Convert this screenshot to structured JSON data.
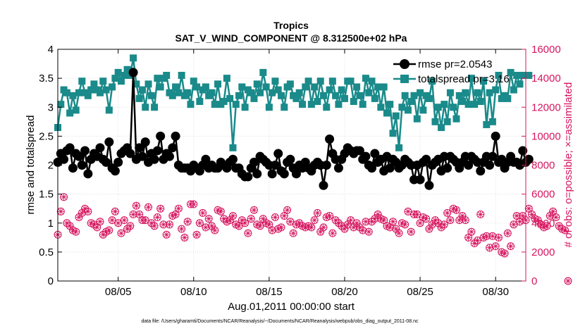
{
  "chart_data": {
    "type": "line",
    "title": "Tropics",
    "subtitle": "SAT_V_WIND_COMPONENT @ 8.312500e+02 hPa",
    "xlabel": "Aug.01,2011 00:00:00 start",
    "ylabel": "rmse and totalspread",
    "y2label": "# of obs: o=possible; ×=assimilated",
    "footnote": "data file: /Users/gharamti/Documents/NCAR/Reanalysis/~/Documents/NCAR/Reanalysis/webpub/obs_diag_output_2011-08.nc",
    "xlim": [
      1,
      32
    ],
    "ylim": [
      0,
      4
    ],
    "y2lim": [
      0,
      16000
    ],
    "x_ticks": [
      5,
      10,
      15,
      20,
      25,
      30
    ],
    "x_tick_labels": [
      "08/05",
      "08/10",
      "08/15",
      "08/20",
      "08/25",
      "08/30"
    ],
    "y_ticks": [
      "0",
      "0.5",
      "1",
      "1.5",
      "2",
      "2.5",
      "3",
      "3.5",
      "4"
    ],
    "y2_ticks": [
      "0",
      "2000",
      "4000",
      "6000",
      "8000",
      "10000",
      "12000",
      "14000",
      "16000"
    ],
    "legend": [
      "rmse pr=2.0543",
      "totalspread pr=3.16"
    ],
    "legend_location": "top-right",
    "colors": {
      "rmse": "#000000",
      "spread": "#1a8a8a",
      "obs": "#d6155f"
    },
    "series": [
      {
        "name": "rmse pr=2.0543",
        "axis": "left",
        "marker": "filled-circle",
        "values": [
          2.05,
          2.2,
          2.1,
          2.25,
          2.3,
          1.95,
          2.2,
          2.15,
          2.0,
          2.25,
          1.85,
          2.1,
          2.2,
          2.15,
          2.3,
          2.1,
          2.05,
          2.4,
          1.95,
          1.9,
          2.05,
          2.2,
          2.25,
          2.3,
          2.2,
          3.6,
          2.1,
          2.3,
          2.15,
          2.4,
          2.05,
          2.2,
          2.1,
          2.25,
          2.5,
          2.1,
          2.2,
          2.15,
          2.3,
          2.5,
          2.0,
          1.95,
          1.95,
          1.95,
          1.9,
          2.0,
          1.95,
          1.9,
          2.0,
          2.1,
          1.95,
          2.0,
          1.95,
          1.95,
          2.05,
          2.0,
          1.95,
          2.05,
          2.1,
          1.95,
          1.95,
          1.85,
          1.8,
          1.8,
          1.95,
          2.05,
          1.85,
          2.15,
          2.1,
          2.05,
          2.0,
          1.85,
          2.0,
          2.2,
          1.9,
          1.85,
          2.05,
          2.1,
          1.95,
          1.85,
          2.0,
          1.95,
          2.05,
          1.95,
          1.9,
          2.0,
          2.05,
          2.0,
          1.65,
          2.0,
          2.45,
          2.2,
          2.1,
          1.95,
          2.1,
          2.2,
          2.3,
          2.25,
          2.2,
          2.25,
          2.25,
          2.1,
          2.15,
          2.0,
          1.95,
          2.2,
          2.05,
          2.1,
          1.9,
          2.15,
          1.95,
          2.1,
          2.05,
          1.95,
          2.0,
          2.1,
          2.05,
          2.0,
          1.75,
          2.0,
          1.75,
          2.05,
          2.1,
          1.65,
          2.0,
          2.05,
          2.1,
          1.9,
          2.15,
          1.95,
          2.15,
          2.1,
          2.05,
          1.95,
          2.05,
          2.15,
          2.0,
          2.15,
          2.1,
          2.05,
          1.9,
          2.05,
          2.15,
          2.0,
          2.15,
          2.5,
          2.05,
          2.1,
          1.95,
          2.05,
          2.15,
          2.05,
          2.05,
          2.0,
          2.25,
          2.05,
          2.1
        ]
      },
      {
        "name": "totalspread pr=3.16",
        "axis": "left",
        "marker": "filled-square",
        "values": [
          2.65,
          3.05,
          3.3,
          3.25,
          2.9,
          3.2,
          2.95,
          3.25,
          3.45,
          3.25,
          3.2,
          3.3,
          3.4,
          3.3,
          3.25,
          3.45,
          3.3,
          2.95,
          3.35,
          3.5,
          3.6,
          3.45,
          3.55,
          3.65,
          3.55,
          3.85,
          3.4,
          3.15,
          3.3,
          3.0,
          3.4,
          3.2,
          3.0,
          3.5,
          3.35,
          3.5,
          3.55,
          3.25,
          3.2,
          3.35,
          3.25,
          3.55,
          3.2,
          3.25,
          3.05,
          3.45,
          3.35,
          3.1,
          3.3,
          3.35,
          3.2,
          3.25,
          3.05,
          3.4,
          3.05,
          3.1,
          3.5,
          3.15,
          2.3,
          3.05,
          3.2,
          3.35,
          3.0,
          3.3,
          3.25,
          3.15,
          3.4,
          3.25,
          3.6,
          3.35,
          3.0,
          3.25,
          3.45,
          3.3,
          3.2,
          3.0,
          3.35,
          3.4,
          3.2,
          3.15,
          3.25,
          3.05,
          3.35,
          3.45,
          3.05,
          3.35,
          3.1,
          3.45,
          3.2,
          3.0,
          3.3,
          3.45,
          3.2,
          3.05,
          3.3,
          3.15,
          3.45,
          3.45,
          3.1,
          3.35,
          3.2,
          3.05,
          3.5,
          3.25,
          3.45,
          3.15,
          3.35,
          3.0,
          3.35,
          2.9,
          3.05,
          2.55,
          2.85,
          2.3,
          3.0,
          3.2,
          2.95,
          3.1,
          3.2,
          2.8,
          3.25,
          2.95,
          3.2,
          3.15,
          3.45,
          2.75,
          3.0,
          2.65,
          3.05,
          2.75,
          3.25,
          3.0,
          2.8,
          3.2,
          3.1,
          3.25,
          3.05,
          3.5,
          3.05,
          3.25,
          3.1,
          3.45,
          2.7,
          3.25,
          2.75,
          3.3,
          3.55,
          3.15,
          3.2,
          3.15,
          3.6,
          3.3,
          3.55,
          3.4,
          3.55,
          3.55,
          3.55
        ]
      },
      {
        "name": "possible obs",
        "axis": "right",
        "marker": "open-circle",
        "values": [
          3200,
          4800,
          5800,
          4000,
          3800,
          3500,
          3400,
          4400,
          4700,
          5000,
          4800,
          4000,
          3900,
          3700,
          4100,
          3200,
          3400,
          3500,
          4200,
          4800,
          4000,
          3300,
          4200,
          3600,
          3800,
          4600,
          5200,
          4600,
          4200,
          4200,
          5100,
          4000,
          3800,
          4400,
          5000,
          3900,
          3200,
          3900,
          4500,
          4600,
          5000,
          3600,
          3000,
          4100,
          5300,
          5300,
          3200,
          4000,
          4700,
          3700,
          4300,
          3800,
          3500,
          4900,
          4800,
          4300,
          4100,
          4200,
          4500,
          3900,
          3800,
          4200,
          4000,
          3300,
          4300,
          4900,
          3900,
          3800,
          4300,
          4000,
          3900,
          3500,
          4400,
          3600,
          3700,
          4500,
          4900,
          4100,
          3300,
          3900,
          4000,
          3800,
          3700,
          3800,
          3700,
          4200,
          4700,
          3400,
          3700,
          4400,
          4500,
          3300,
          4200,
          4000,
          3800,
          3600,
          3900,
          4200,
          3700,
          4000,
          3700,
          3500,
          4100,
          3400,
          4100,
          4300,
          4600,
          4300,
          4200,
          3800,
          3700,
          4100,
          3600,
          3300,
          4000,
          3900,
          4800,
          3400,
          4600,
          4600,
          4000,
          4400,
          4300,
          3600,
          3900,
          4200,
          4000,
          3700,
          3900,
          4700,
          4200,
          5000,
          4900,
          4200,
          4500,
          4200,
          3000,
          3400,
          2600,
          2800,
          4600,
          3000,
          3100,
          2300,
          3100,
          2400,
          3000,
          2000,
          1900,
          3300,
          2400,
          3900,
          4500,
          4100,
          4500,
          4200,
          5000,
          4600,
          4300,
          4200,
          3900,
          3700,
          3800,
          4500,
          4800,
          4400,
          3800,
          3600,
          3500,
          0
        ]
      },
      {
        "name": "assimilated obs",
        "axis": "right",
        "marker": "cross",
        "values": [
          3200,
          4800,
          5800,
          4000,
          3800,
          3500,
          3400,
          4400,
          4700,
          5000,
          4800,
          4000,
          3900,
          3700,
          4100,
          3200,
          3400,
          3500,
          4200,
          4800,
          4000,
          3300,
          4200,
          3600,
          3800,
          4600,
          5200,
          4600,
          4200,
          4200,
          5100,
          4000,
          3800,
          4400,
          5000,
          3900,
          3200,
          3900,
          4500,
          4600,
          5000,
          3600,
          3000,
          4100,
          5300,
          5300,
          3200,
          4000,
          4700,
          3700,
          4300,
          3800,
          3500,
          4900,
          4800,
          4300,
          4100,
          4200,
          4500,
          3900,
          3800,
          4200,
          4000,
          3300,
          4300,
          4900,
          3900,
          3800,
          4300,
          4000,
          3900,
          3500,
          4400,
          3600,
          3700,
          4500,
          4900,
          4100,
          3300,
          3900,
          4000,
          3800,
          3700,
          3800,
          3700,
          4200,
          4700,
          3400,
          3700,
          4400,
          4500,
          3300,
          4200,
          4000,
          3800,
          3600,
          3900,
          4200,
          3700,
          4000,
          3700,
          3500,
          4100,
          3400,
          4100,
          4300,
          4600,
          4300,
          4200,
          3800,
          3700,
          4100,
          3600,
          3300,
          4000,
          3900,
          4800,
          3400,
          4600,
          4600,
          4000,
          4400,
          4300,
          3600,
          3900,
          4200,
          4000,
          3700,
          3900,
          4700,
          4200,
          5000,
          4900,
          4200,
          4500,
          4200,
          3000,
          3400,
          2600,
          2800,
          4600,
          3000,
          3100,
          2300,
          3100,
          2400,
          3000,
          2000,
          1900,
          3300,
          2400,
          3900,
          4500,
          4100,
          4500,
          4200,
          5000,
          4600,
          4300,
          4200,
          3900,
          3700,
          3800,
          4500,
          4800,
          4400,
          3800,
          3600,
          3500,
          0
        ]
      }
    ]
  }
}
